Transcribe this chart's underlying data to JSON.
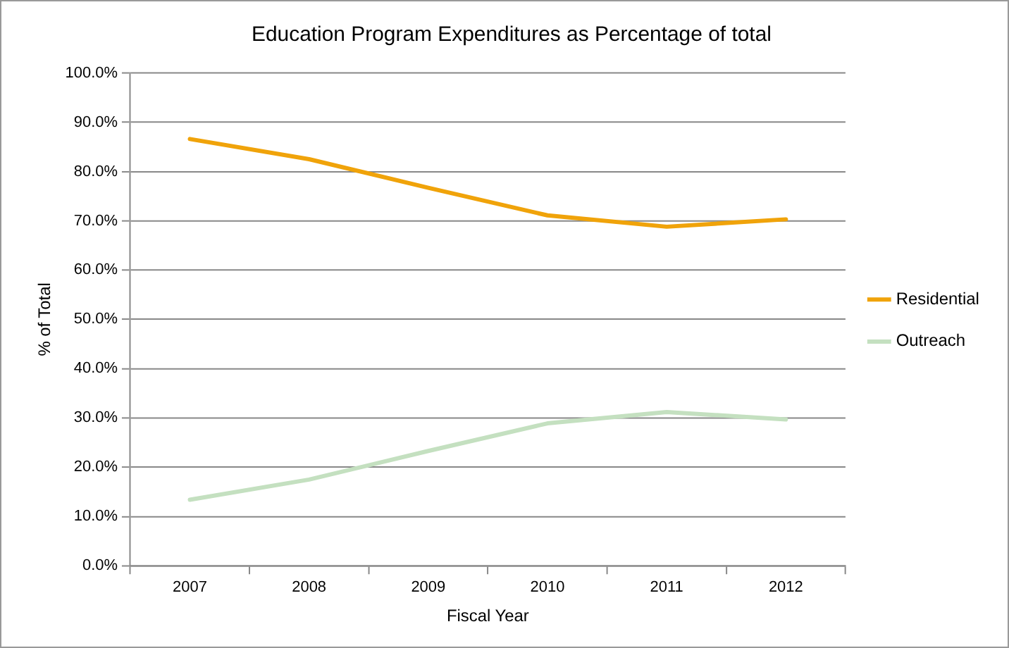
{
  "chart_data": {
    "type": "line",
    "title": "Education Program Expenditures as Percentage of total",
    "xlabel": "Fiscal Year",
    "ylabel": "% of Total",
    "categories": [
      "2007",
      "2008",
      "2009",
      "2010",
      "2011",
      "2012"
    ],
    "series": [
      {
        "name": "Residential",
        "color": "#f0a30a",
        "values": [
          86.6,
          82.5,
          76.7,
          71.1,
          68.8,
          70.3
        ]
      },
      {
        "name": "Outreach",
        "color": "#c4e0c0",
        "values": [
          13.4,
          17.5,
          23.3,
          28.9,
          31.2,
          29.7
        ]
      }
    ],
    "ylim": [
      0,
      100
    ],
    "yticks": [
      {
        "value": 0,
        "label": "0.0%"
      },
      {
        "value": 10,
        "label": "10.0%"
      },
      {
        "value": 20,
        "label": "20.0%"
      },
      {
        "value": 30,
        "label": "30.0%"
      },
      {
        "value": 40,
        "label": "40.0%"
      },
      {
        "value": 50,
        "label": "50.0%"
      },
      {
        "value": 60,
        "label": "60.0%"
      },
      {
        "value": 70,
        "label": "70.0%"
      },
      {
        "value": 80,
        "label": "80.0%"
      },
      {
        "value": 90,
        "label": "90.0%"
      },
      {
        "value": 100,
        "label": "100.0%"
      }
    ],
    "grid": "y",
    "legend": "right",
    "marker": "none",
    "line_style": "solid"
  }
}
